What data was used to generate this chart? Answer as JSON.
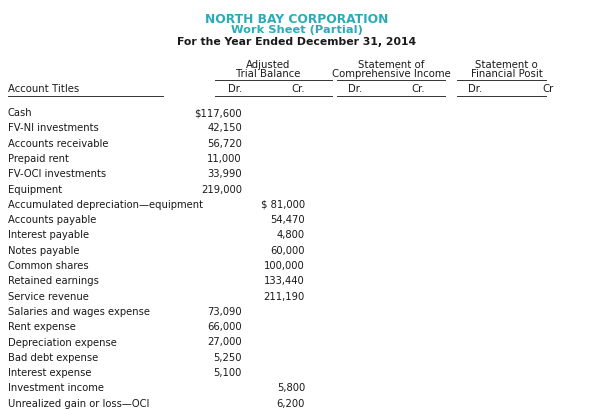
{
  "title1": "NORTH BAY CORPORATION",
  "title2": "Work Sheet (Partial)",
  "title3": "For the Year Ended December 31, 2014",
  "title_color": "#2AACB8",
  "text_color": "#1a1a1a",
  "bg_color": "#ffffff",
  "line_color": "#333333",
  "accounts": [
    "Cash",
    "FV-NI investments",
    "Accounts receivable",
    "Prepaid rent",
    "FV-OCI investments",
    "Equipment",
    "Accumulated depreciation—equipment",
    "Accounts payable",
    "Interest payable",
    "Notes payable",
    "Common shares",
    "Retained earnings",
    "Service revenue",
    "Salaries and wages expense",
    "Rent expense",
    "Depreciation expense",
    "Bad debt expense",
    "Interest expense",
    "Investment income",
    "Unrealized gain or loss—OCI"
  ],
  "atb_dr": [
    "$117,600",
    "42,150",
    "56,720",
    "11,000",
    "33,990",
    "219,000",
    "",
    "",
    "",
    "",
    "",
    "",
    "",
    "73,090",
    "66,000",
    "27,000",
    "5,250",
    "5,100",
    "",
    ""
  ],
  "atb_cr": [
    "",
    "",
    "",
    "",
    "",
    "",
    "$ 81,000",
    "54,470",
    "4,800",
    "60,000",
    "100,000",
    "133,440",
    "211,190",
    "",
    "",
    "",
    "",
    "",
    "5,800",
    "6,200"
  ],
  "sci_dr": [
    "",
    "",
    "",
    "",
    "",
    "",
    "",
    "",
    "",
    "",
    "",
    "",
    "",
    "",
    "",
    "",
    "",
    "",
    "",
    ""
  ],
  "sci_cr": [
    "",
    "",
    "",
    "",
    "",
    "",
    "",
    "",
    "",
    "",
    "",
    "",
    "",
    "",
    "",
    "",
    "",
    "",
    "",
    ""
  ],
  "sfp_dr": [
    "",
    "",
    "",
    "",
    "",
    "",
    "",
    "",
    "",
    "",
    "",
    "",
    "",
    "",
    "",
    "",
    "",
    "",
    "",
    ""
  ],
  "sfp_cr": [
    "",
    "",
    "",
    "",
    "",
    "",
    "",
    "",
    "",
    "",
    "",
    "",
    "",
    "",
    "",
    "",
    "",
    "",
    "",
    ""
  ]
}
